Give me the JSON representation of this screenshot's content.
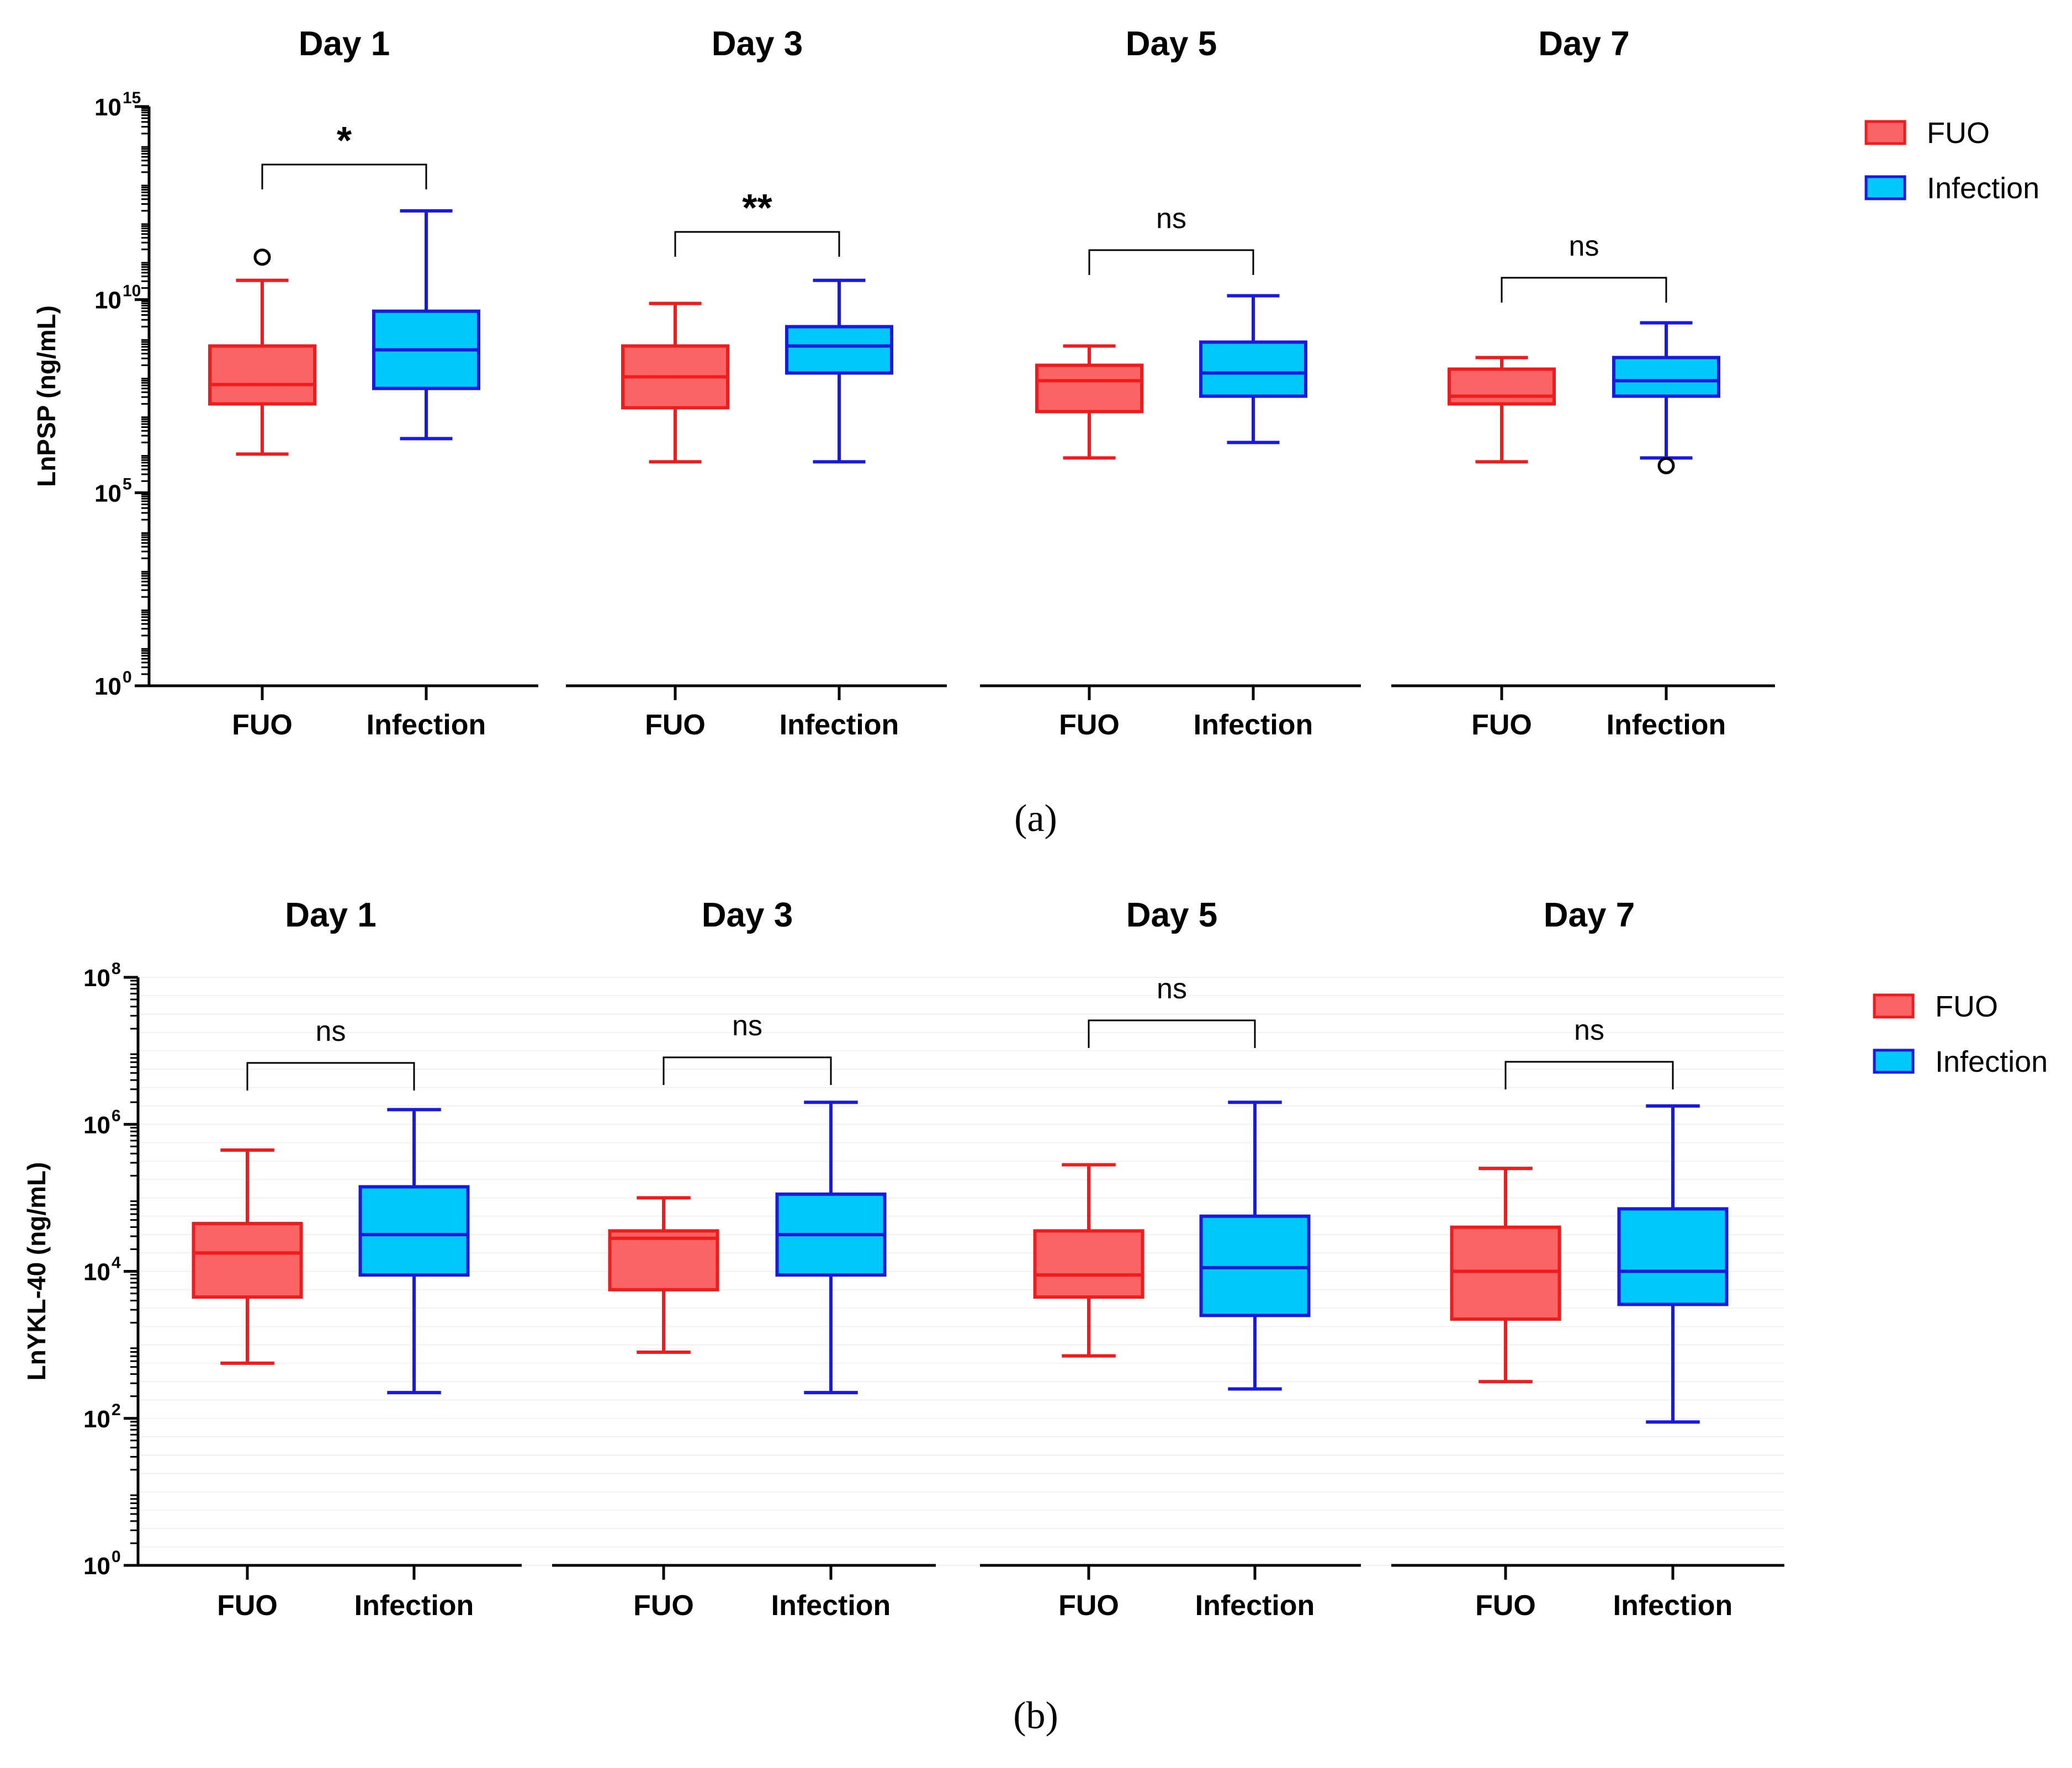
{
  "chart_data": [
    {
      "type": "box",
      "panel": "(a)",
      "ylabel": "LnPSP (ng/mL)",
      "yscale": "log10",
      "ylim_exponent": [
        0,
        15
      ],
      "yticks": [
        {
          "base": "10",
          "exp": "0"
        },
        {
          "base": "10",
          "exp": "5"
        },
        {
          "base": "10",
          "exp": "10"
        },
        {
          "base": "10",
          "exp": "15"
        }
      ],
      "legend": [
        {
          "name": "FUO",
          "fill": "#fa6464",
          "stroke": "#ee1c1c"
        },
        {
          "name": "Infection",
          "fill": "#00c8f8",
          "stroke": "#1a1adc"
        }
      ],
      "groups": [
        {
          "title": "Day 1",
          "significance": "*",
          "boxes": [
            {
              "category": "FUO",
              "whisker_low": 6.0,
              "q1": 7.3,
              "median": 7.8,
              "q3": 8.8,
              "whisker_high": 10.5,
              "outliers": [
                11.1
              ]
            },
            {
              "category": "Infection",
              "whisker_low": 6.4,
              "q1": 7.7,
              "median": 8.7,
              "q3": 9.7,
              "whisker_high": 12.3,
              "outliers": []
            }
          ]
        },
        {
          "title": "Day 3",
          "significance": "**",
          "boxes": [
            {
              "category": "FUO",
              "whisker_low": 5.8,
              "q1": 7.2,
              "median": 8.0,
              "q3": 8.8,
              "whisker_high": 9.9,
              "outliers": []
            },
            {
              "category": "Infection",
              "whisker_low": 5.8,
              "q1": 8.1,
              "median": 8.8,
              "q3": 9.3,
              "whisker_high": 10.5,
              "outliers": []
            }
          ]
        },
        {
          "title": "Day 5",
          "significance": "ns",
          "boxes": [
            {
              "category": "FUO",
              "whisker_low": 5.9,
              "q1": 7.1,
              "median": 7.9,
              "q3": 8.3,
              "whisker_high": 8.8,
              "outliers": []
            },
            {
              "category": "Infection",
              "whisker_low": 6.3,
              "q1": 7.5,
              "median": 8.1,
              "q3": 8.9,
              "whisker_high": 10.1,
              "outliers": []
            }
          ]
        },
        {
          "title": "Day 7",
          "significance": "ns",
          "boxes": [
            {
              "category": "FUO",
              "whisker_low": 5.8,
              "q1": 7.3,
              "median": 7.5,
              "q3": 8.2,
              "whisker_high": 8.5,
              "outliers": []
            },
            {
              "category": "Infection",
              "whisker_low": 5.9,
              "q1": 7.5,
              "median": 7.9,
              "q3": 8.5,
              "whisker_high": 9.4,
              "outliers": [
                5.7
              ]
            }
          ]
        }
      ]
    },
    {
      "type": "box",
      "panel": "(b)",
      "ylabel": "LnYKL-40 (ng/mL)",
      "yscale": "log10",
      "ylim_exponent": [
        0,
        8
      ],
      "yticks": [
        {
          "base": "10",
          "exp": "0"
        },
        {
          "base": "10",
          "exp": "2"
        },
        {
          "base": "10",
          "exp": "4"
        },
        {
          "base": "10",
          "exp": "6"
        },
        {
          "base": "10",
          "exp": "8"
        }
      ],
      "legend": [
        {
          "name": "FUO",
          "fill": "#fa6464",
          "stroke": "#ee1c1c"
        },
        {
          "name": "Infection",
          "fill": "#00c8f8",
          "stroke": "#1a1adc"
        }
      ],
      "groups": [
        {
          "title": "Day 1",
          "significance": "ns",
          "boxes": [
            {
              "category": "FUO",
              "whisker_low": 2.75,
              "q1": 3.65,
              "median": 4.25,
              "q3": 4.65,
              "whisker_high": 5.65,
              "outliers": []
            },
            {
              "category": "Infection",
              "whisker_low": 2.35,
              "q1": 3.95,
              "median": 4.5,
              "q3": 5.15,
              "whisker_high": 6.2,
              "outliers": []
            }
          ]
        },
        {
          "title": "Day 3",
          "significance": "ns",
          "boxes": [
            {
              "category": "FUO",
              "whisker_low": 2.9,
              "q1": 3.75,
              "median": 4.45,
              "q3": 4.55,
              "whisker_high": 5.0,
              "outliers": []
            },
            {
              "category": "Infection",
              "whisker_low": 2.35,
              "q1": 3.95,
              "median": 4.5,
              "q3": 5.05,
              "whisker_high": 6.3,
              "outliers": []
            }
          ]
        },
        {
          "title": "Day 5",
          "significance": "ns",
          "boxes": [
            {
              "category": "FUO",
              "whisker_low": 2.85,
              "q1": 3.65,
              "median": 3.95,
              "q3": 4.55,
              "whisker_high": 5.45,
              "outliers": []
            },
            {
              "category": "Infection",
              "whisker_low": 2.4,
              "q1": 3.4,
              "median": 4.05,
              "q3": 4.75,
              "whisker_high": 6.3,
              "outliers": []
            }
          ]
        },
        {
          "title": "Day 7",
          "significance": "ns",
          "boxes": [
            {
              "category": "FUO",
              "whisker_low": 2.5,
              "q1": 3.35,
              "median": 4.0,
              "q3": 4.6,
              "whisker_high": 5.4,
              "outliers": []
            },
            {
              "category": "Infection",
              "whisker_low": 1.95,
              "q1": 3.55,
              "median": 4.0,
              "q3": 4.85,
              "whisker_high": 6.25,
              "outliers": []
            }
          ]
        }
      ]
    }
  ]
}
